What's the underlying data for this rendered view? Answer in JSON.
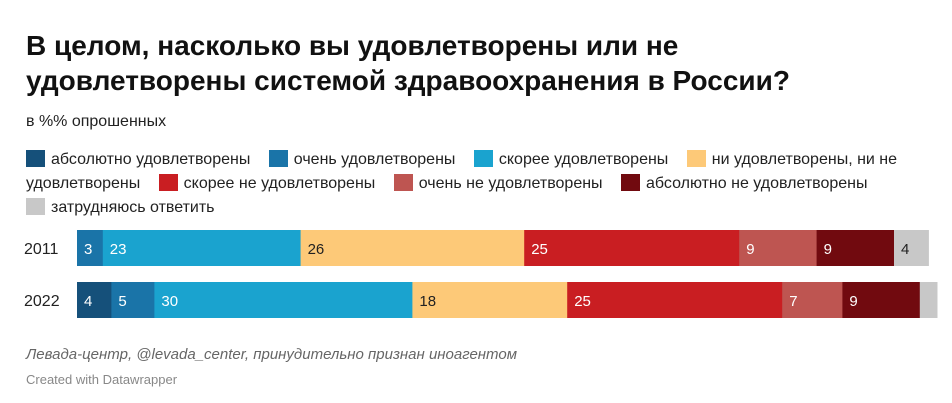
{
  "title": "В целом, насколько вы удовлетворены или не удовлетворены системой здравоохранения в России?",
  "subtitle": "в %% опрошенных",
  "legend": [
    {
      "label": "абсолютно удовлетворены",
      "color": "#15507a"
    },
    {
      "label": "очень удовлетворены",
      "color": "#1a74a8"
    },
    {
      "label": "скорее удовлетворены",
      "color": "#1aa3cf"
    },
    {
      "label": "ни удовлетворены, ни не удовлетворены",
      "color": "#fdc978"
    },
    {
      "label": "скорее не удовлетворены",
      "color": "#c91e22"
    },
    {
      "label": "очень не удовлетворены",
      "color": "#be5551"
    },
    {
      "label": "абсолютно не удовлетворены",
      "color": "#710a0f"
    },
    {
      "label": "затрудняюсь ответить",
      "color": "#c8c8c8"
    }
  ],
  "chart_data": {
    "type": "bar",
    "orientation": "horizontal",
    "stacked": true,
    "categories": [
      "2011",
      "2022"
    ],
    "series": [
      {
        "name": "абсолютно удовлетворены",
        "values": [
          0,
          4
        ],
        "labels": [
          "",
          "4"
        ]
      },
      {
        "name": "очень удовлетворены",
        "values": [
          3,
          5
        ],
        "labels": [
          "3",
          "5"
        ]
      },
      {
        "name": "скорее удовлетворены",
        "values": [
          23,
          30
        ],
        "labels": [
          "23",
          "30"
        ]
      },
      {
        "name": "ни удовлетворены, ни не удовлетворены",
        "values": [
          26,
          18
        ],
        "labels": [
          "26",
          "18"
        ]
      },
      {
        "name": "скорее не удовлетворены",
        "values": [
          25,
          25
        ],
        "labels": [
          "25",
          "25"
        ]
      },
      {
        "name": "очень не удовлетворены",
        "values": [
          9,
          7
        ],
        "labels": [
          "9",
          "7"
        ]
      },
      {
        "name": "абсолютно не удовлетворены",
        "values": [
          9,
          9
        ],
        "labels": [
          "9",
          "9"
        ]
      },
      {
        "name": "затрудняюсь ответить",
        "values": [
          4,
          2
        ],
        "labels": [
          "4",
          ""
        ]
      }
    ],
    "xlim": [
      0,
      100
    ]
  },
  "footer": {
    "source": "Левада-центр, @levada_center, принудительно признан иноагентом",
    "credit": "Created with Datawrapper"
  }
}
